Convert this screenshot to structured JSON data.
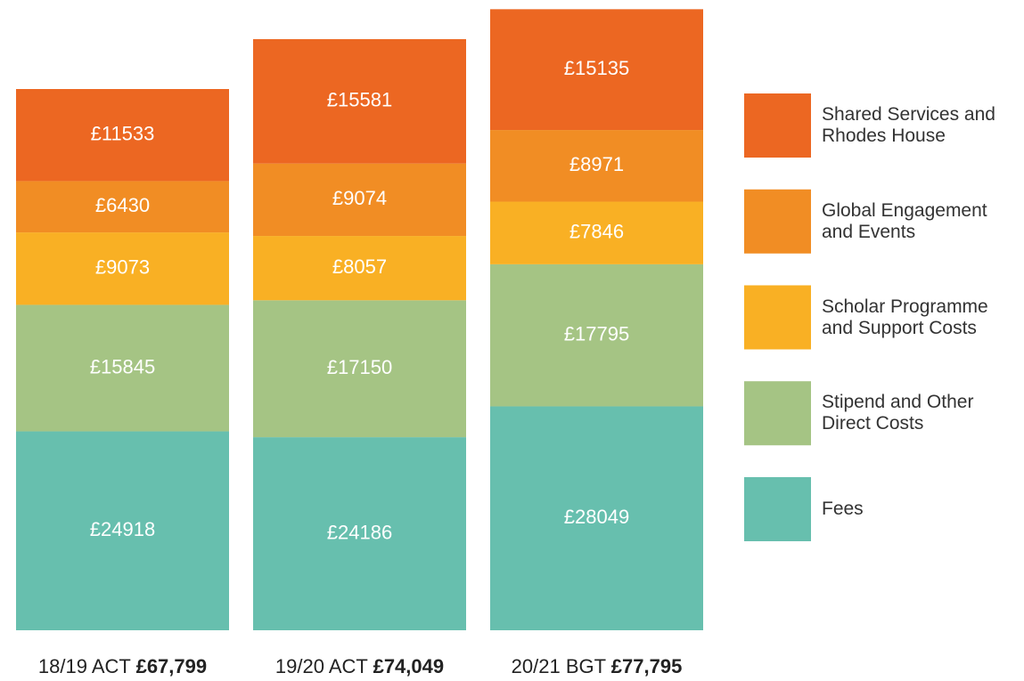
{
  "chart_data": {
    "type": "stacked_bar",
    "categories": [
      "18/19 ACT",
      "19/20 ACT",
      "20/21 BGT"
    ],
    "totals": [
      67799,
      74049,
      77795
    ],
    "total_labels": [
      "£67,799",
      "£74,049",
      "£77,795"
    ],
    "series": [
      {
        "name": "Fees",
        "color": "#67bfae",
        "values": [
          24918,
          24186,
          28049
        ],
        "value_labels": [
          "£24918",
          "£24186",
          "£28049"
        ]
      },
      {
        "name": "Stipend and Other Direct Costs",
        "color": "#a5c484",
        "values": [
          15845,
          17150,
          17795
        ],
        "value_labels": [
          "£15845",
          "£17150",
          "£17795"
        ]
      },
      {
        "name": "Scholar Programme and Support Costs",
        "color": "#f9b024",
        "values": [
          9073,
          8057,
          7846
        ],
        "value_labels": [
          "£9073",
          "£8057",
          "£7846"
        ]
      },
      {
        "name": "Global Engagement and Events",
        "color": "#f18d24",
        "values": [
          6430,
          9074,
          8971
        ],
        "value_labels": [
          "£6430",
          "£9074",
          "£8971"
        ]
      },
      {
        "name": "Shared Services and Rhodes House",
        "color": "#ec6722",
        "values": [
          11533,
          15581,
          15135
        ],
        "value_labels": [
          "£11533",
          "£15581",
          "£15135"
        ]
      }
    ]
  }
}
